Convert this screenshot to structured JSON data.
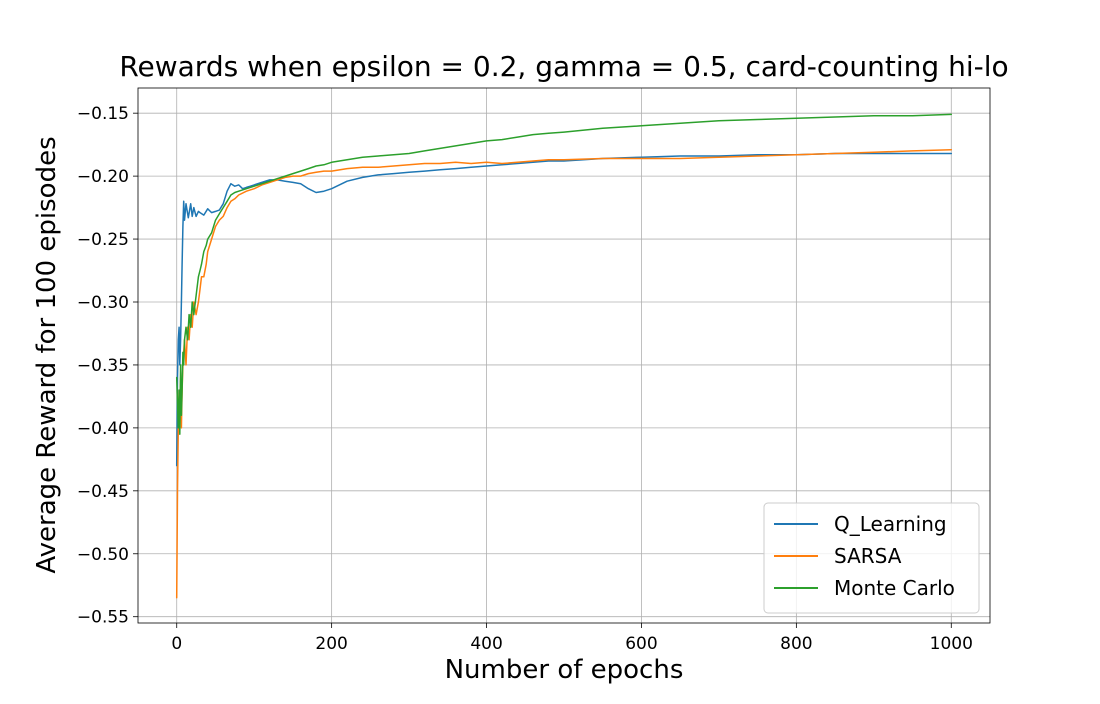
{
  "chart_data": {
    "type": "line",
    "title": "Rewards when epsilon = 0.2, gamma = 0.5, card-counting hi-lo",
    "xlabel": "Number of epochs",
    "ylabel": "Average Reward for 100 episodes",
    "xlim": [
      -50,
      1050
    ],
    "ylim": [
      -0.555,
      -0.13
    ],
    "x_ticks": [
      0,
      200,
      400,
      600,
      800,
      1000
    ],
    "x_tick_labels": [
      "0",
      "200",
      "400",
      "600",
      "800",
      "1000"
    ],
    "y_ticks": [
      -0.55,
      -0.5,
      -0.45,
      -0.4,
      -0.35,
      -0.3,
      -0.25,
      -0.2,
      -0.15
    ],
    "y_tick_labels": [
      "−0.55",
      "−0.50",
      "−0.45",
      "−0.40",
      "−0.35",
      "−0.30",
      "−0.25",
      "−0.20",
      "−0.15"
    ],
    "grid": true,
    "legend_position": "bottom-right",
    "series": [
      {
        "name": "Q_Learning",
        "color": "#1f77b4",
        "x": [
          0,
          1,
          2,
          3,
          4,
          5,
          6,
          7,
          8,
          9,
          10,
          12,
          15,
          18,
          20,
          22,
          25,
          28,
          30,
          35,
          40,
          45,
          50,
          55,
          60,
          65,
          70,
          75,
          80,
          85,
          90,
          95,
          100,
          110,
          120,
          130,
          140,
          150,
          160,
          170,
          180,
          190,
          200,
          220,
          240,
          260,
          280,
          300,
          320,
          340,
          360,
          380,
          400,
          420,
          440,
          460,
          480,
          500,
          550,
          600,
          650,
          700,
          750,
          800,
          850,
          900,
          950,
          1000
        ],
        "y": [
          -0.43,
          -0.36,
          -0.33,
          -0.32,
          -0.35,
          -0.33,
          -0.3,
          -0.27,
          -0.24,
          -0.22,
          -0.235,
          -0.222,
          -0.233,
          -0.222,
          -0.232,
          -0.225,
          -0.232,
          -0.228,
          -0.229,
          -0.231,
          -0.226,
          -0.229,
          -0.228,
          -0.227,
          -0.222,
          -0.212,
          -0.206,
          -0.208,
          -0.207,
          -0.21,
          -0.209,
          -0.208,
          -0.207,
          -0.205,
          -0.203,
          -0.203,
          -0.204,
          -0.205,
          -0.206,
          -0.21,
          -0.213,
          -0.212,
          -0.21,
          -0.204,
          -0.201,
          -0.199,
          -0.198,
          -0.197,
          -0.196,
          -0.195,
          -0.194,
          -0.193,
          -0.192,
          -0.191,
          -0.19,
          -0.189,
          -0.188,
          -0.188,
          -0.186,
          -0.185,
          -0.184,
          -0.184,
          -0.183,
          -0.183,
          -0.182,
          -0.182,
          -0.182,
          -0.182
        ]
      },
      {
        "name": "SARSA",
        "color": "#ff7f0e",
        "x": [
          0,
          1,
          2,
          3,
          4,
          5,
          6,
          7,
          8,
          9,
          10,
          12,
          14,
          16,
          18,
          20,
          22,
          25,
          28,
          30,
          32,
          35,
          38,
          40,
          45,
          50,
          55,
          60,
          65,
          70,
          75,
          80,
          90,
          100,
          110,
          120,
          130,
          140,
          150,
          160,
          170,
          180,
          190,
          200,
          220,
          240,
          260,
          280,
          300,
          320,
          340,
          360,
          380,
          400,
          420,
          440,
          460,
          480,
          500,
          550,
          600,
          650,
          700,
          750,
          800,
          850,
          900,
          950,
          1000
        ],
        "y": [
          -0.535,
          -0.45,
          -0.4,
          -0.37,
          -0.39,
          -0.36,
          -0.4,
          -0.37,
          -0.35,
          -0.34,
          -0.33,
          -0.35,
          -0.32,
          -0.33,
          -0.31,
          -0.32,
          -0.3,
          -0.31,
          -0.3,
          -0.29,
          -0.28,
          -0.28,
          -0.27,
          -0.26,
          -0.25,
          -0.24,
          -0.235,
          -0.232,
          -0.225,
          -0.22,
          -0.218,
          -0.215,
          -0.212,
          -0.21,
          -0.207,
          -0.205,
          -0.203,
          -0.201,
          -0.2,
          -0.2,
          -0.198,
          -0.197,
          -0.196,
          -0.196,
          -0.194,
          -0.193,
          -0.193,
          -0.192,
          -0.191,
          -0.19,
          -0.19,
          -0.189,
          -0.19,
          -0.189,
          -0.19,
          -0.189,
          -0.188,
          -0.187,
          -0.187,
          -0.186,
          -0.186,
          -0.186,
          -0.185,
          -0.184,
          -0.183,
          -0.182,
          -0.181,
          -0.18,
          -0.179
        ]
      },
      {
        "name": "Monte Carlo",
        "color": "#2ca02c",
        "x": [
          0,
          1,
          2,
          3,
          4,
          5,
          6,
          7,
          8,
          9,
          10,
          12,
          14,
          16,
          18,
          20,
          22,
          25,
          28,
          30,
          32,
          35,
          38,
          40,
          45,
          50,
          55,
          60,
          65,
          70,
          75,
          80,
          90,
          100,
          110,
          120,
          130,
          140,
          150,
          160,
          170,
          180,
          190,
          200,
          220,
          240,
          260,
          280,
          300,
          320,
          340,
          360,
          380,
          400,
          420,
          440,
          460,
          480,
          500,
          550,
          600,
          650,
          700,
          750,
          800,
          850,
          900,
          950,
          1000
        ],
        "y": [
          -0.36,
          -0.38,
          -0.4,
          -0.37,
          -0.405,
          -0.35,
          -0.39,
          -0.37,
          -0.34,
          -0.35,
          -0.33,
          -0.32,
          -0.33,
          -0.31,
          -0.32,
          -0.3,
          -0.31,
          -0.295,
          -0.28,
          -0.275,
          -0.27,
          -0.26,
          -0.255,
          -0.25,
          -0.245,
          -0.235,
          -0.23,
          -0.225,
          -0.22,
          -0.215,
          -0.213,
          -0.212,
          -0.21,
          -0.208,
          -0.206,
          -0.204,
          -0.202,
          -0.2,
          -0.198,
          -0.196,
          -0.194,
          -0.192,
          -0.191,
          -0.189,
          -0.187,
          -0.185,
          -0.184,
          -0.183,
          -0.182,
          -0.18,
          -0.178,
          -0.176,
          -0.174,
          -0.172,
          -0.171,
          -0.169,
          -0.167,
          -0.166,
          -0.165,
          -0.162,
          -0.16,
          -0.158,
          -0.156,
          -0.155,
          -0.154,
          -0.153,
          -0.152,
          -0.152,
          -0.151
        ]
      }
    ]
  }
}
